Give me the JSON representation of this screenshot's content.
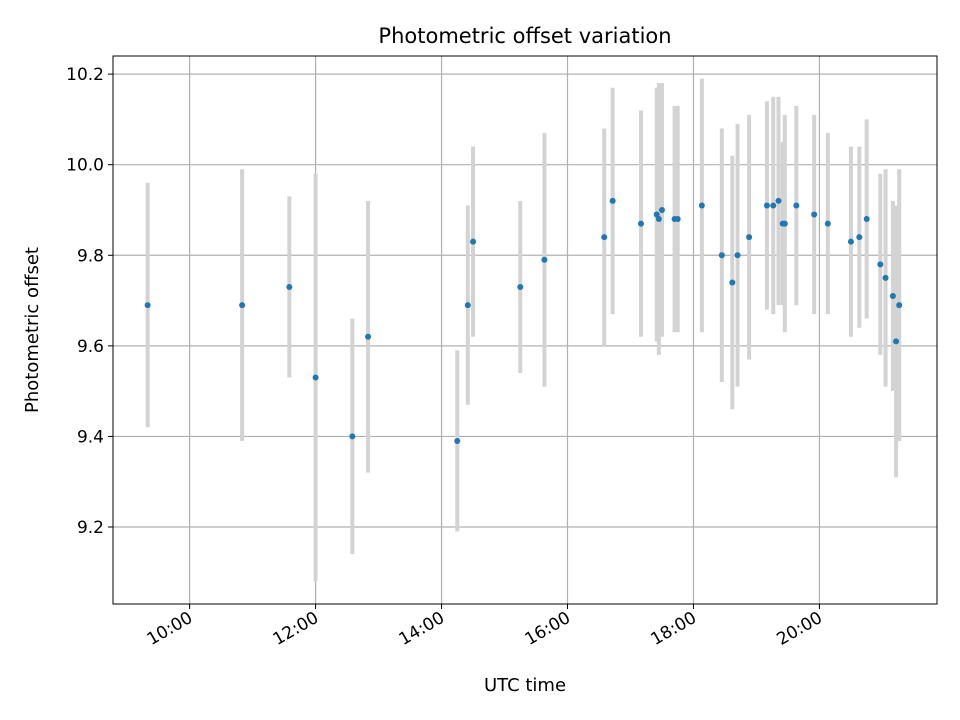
{
  "chart_data": {
    "type": "scatter",
    "title": "Photometric offset variation",
    "xlabel": "UTC time",
    "ylabel": "Photometric offset",
    "grid": true,
    "xlim": [
      "08:47",
      "21:52"
    ],
    "ylim": [
      9.03,
      10.24
    ],
    "x_ticks": [
      "10:00",
      "12:00",
      "14:00",
      "16:00",
      "18:00",
      "20:00"
    ],
    "y_ticks": [
      9.2,
      9.4,
      9.6,
      9.8,
      10.0,
      10.2
    ],
    "point_color": "#1f77b4",
    "errorbar_color": "#d3d3d3",
    "points": [
      {
        "x": "09:20",
        "y": 9.69,
        "err": 0.27
      },
      {
        "x": "10:50",
        "y": 9.69,
        "err": 0.3
      },
      {
        "x": "11:35",
        "y": 9.73,
        "err": 0.2
      },
      {
        "x": "12:00",
        "y": 9.53,
        "err": 0.45
      },
      {
        "x": "12:35",
        "y": 9.4,
        "err": 0.26
      },
      {
        "x": "12:50",
        "y": 9.62,
        "err": 0.3
      },
      {
        "x": "14:15",
        "y": 9.39,
        "err": 0.2
      },
      {
        "x": "14:25",
        "y": 9.69,
        "err": 0.22
      },
      {
        "x": "14:30",
        "y": 9.83,
        "err": 0.21
      },
      {
        "x": "15:15",
        "y": 9.73,
        "err": 0.19
      },
      {
        "x": "15:38",
        "y": 9.79,
        "err": 0.28
      },
      {
        "x": "16:35",
        "y": 9.84,
        "err": 0.24
      },
      {
        "x": "16:43",
        "y": 9.92,
        "err": 0.25
      },
      {
        "x": "17:10",
        "y": 9.87,
        "err": 0.25
      },
      {
        "x": "17:25",
        "y": 9.89,
        "err": 0.28
      },
      {
        "x": "17:27",
        "y": 9.88,
        "err": 0.3
      },
      {
        "x": "17:30",
        "y": 9.9,
        "err": 0.28
      },
      {
        "x": "17:42",
        "y": 9.88,
        "err": 0.25
      },
      {
        "x": "17:45",
        "y": 9.88,
        "err": 0.25
      },
      {
        "x": "18:08",
        "y": 9.91,
        "err": 0.28
      },
      {
        "x": "18:27",
        "y": 9.8,
        "err": 0.28
      },
      {
        "x": "18:37",
        "y": 9.74,
        "err": 0.28
      },
      {
        "x": "18:42",
        "y": 9.8,
        "err": 0.29
      },
      {
        "x": "18:53",
        "y": 9.84,
        "err": 0.27
      },
      {
        "x": "19:10",
        "y": 9.91,
        "err": 0.23
      },
      {
        "x": "19:16",
        "y": 9.91,
        "err": 0.24
      },
      {
        "x": "19:21",
        "y": 9.92,
        "err": 0.23
      },
      {
        "x": "19:25",
        "y": 9.87,
        "err": 0.18
      },
      {
        "x": "19:27",
        "y": 9.87,
        "err": 0.24
      },
      {
        "x": "19:38",
        "y": 9.91,
        "err": 0.22
      },
      {
        "x": "19:55",
        "y": 9.89,
        "err": 0.22
      },
      {
        "x": "20:08",
        "y": 9.87,
        "err": 0.2
      },
      {
        "x": "20:30",
        "y": 9.83,
        "err": 0.21
      },
      {
        "x": "20:38",
        "y": 9.84,
        "err": 0.2
      },
      {
        "x": "20:45",
        "y": 9.88,
        "err": 0.22
      },
      {
        "x": "20:58",
        "y": 9.78,
        "err": 0.2
      },
      {
        "x": "21:03",
        "y": 9.75,
        "err": 0.24
      },
      {
        "x": "21:10",
        "y": 9.71,
        "err": 0.21
      },
      {
        "x": "21:13",
        "y": 9.61,
        "err": 0.3
      },
      {
        "x": "21:16",
        "y": 9.69,
        "err": 0.3
      }
    ]
  }
}
